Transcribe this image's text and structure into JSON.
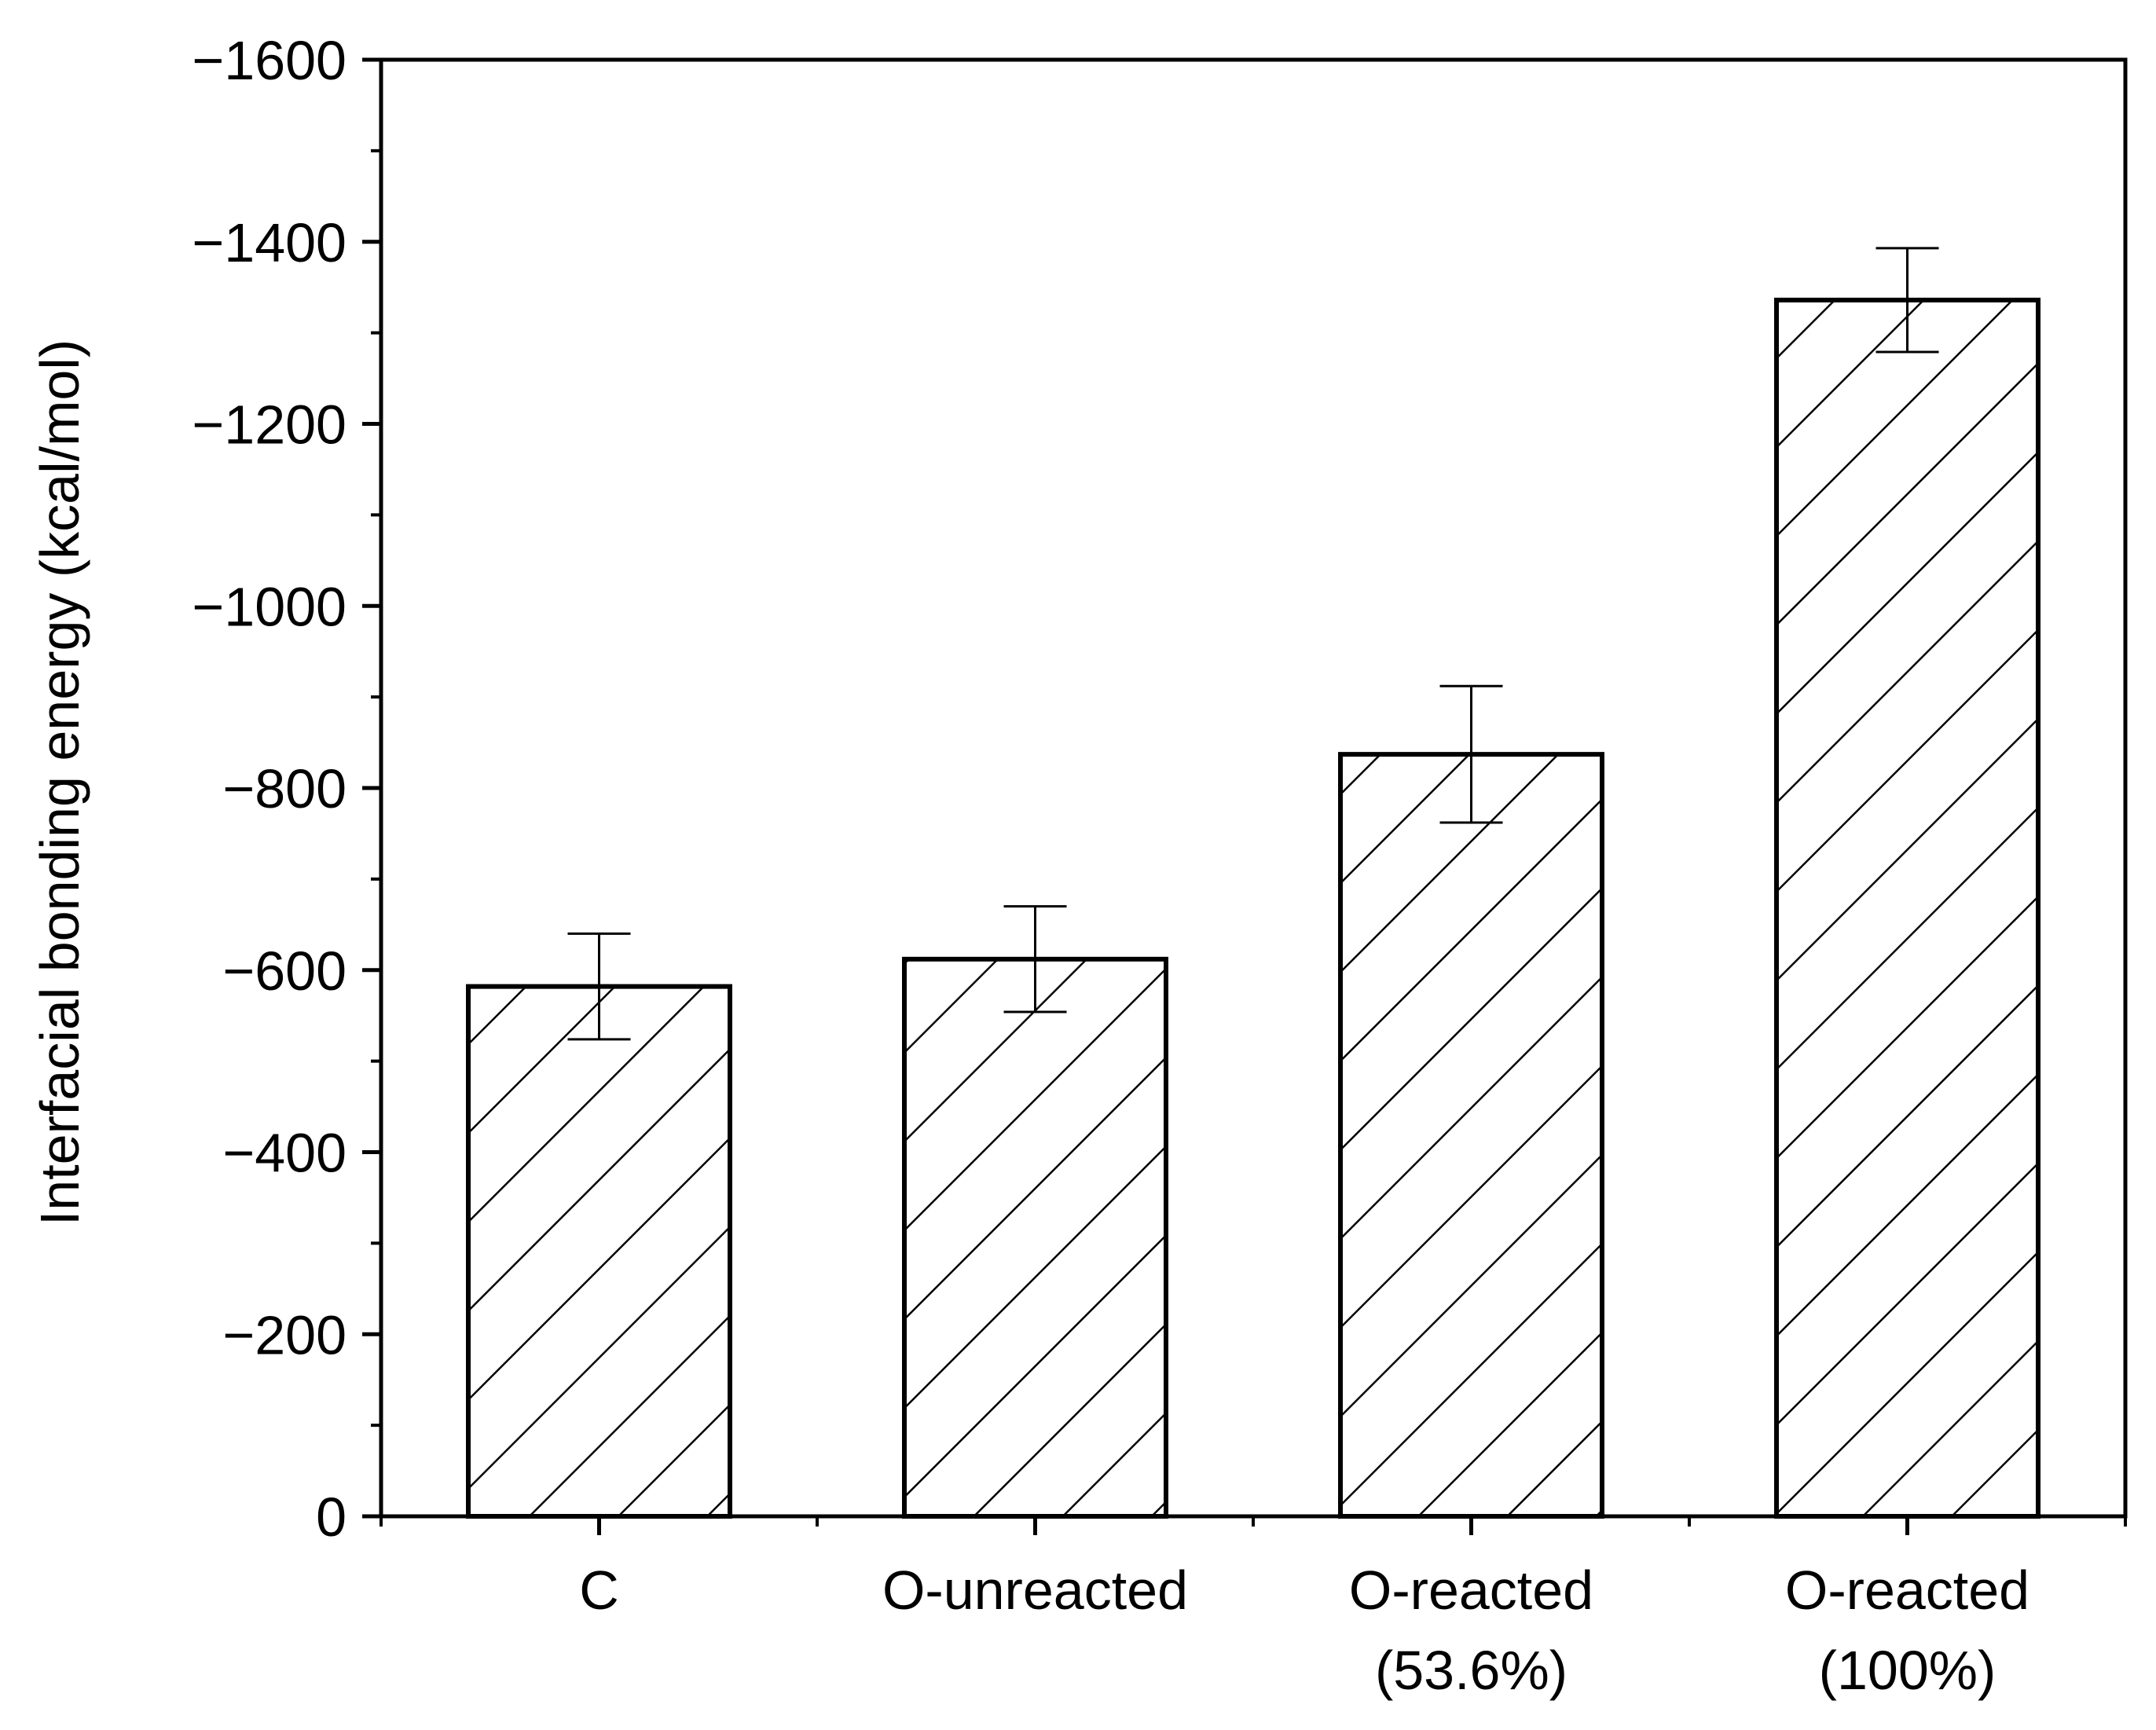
{
  "chart_data": {
    "type": "bar",
    "title": "",
    "xlabel": "",
    "ylabel": "Interfacial bonding energy (kcal/mol)",
    "categories": [
      [
        "C"
      ],
      [
        "O-unreacted"
      ],
      [
        "O-reacted",
        "(53.6%)"
      ],
      [
        "O-reacted",
        "(100%)"
      ]
    ],
    "values": [
      -582,
      -612,
      -837,
      -1336
    ],
    "errors": [
      58,
      58,
      75,
      57
    ],
    "ylim": [
      0,
      -1600
    ],
    "yticks": [
      0,
      -200,
      -400,
      -600,
      -800,
      -1000,
      -1200,
      -1400,
      -1600
    ],
    "ytick_labels": [
      "0",
      "−200",
      "−400",
      "−600",
      "−800",
      "−1000",
      "−1200",
      "−1400",
      "−1600"
    ],
    "bar_pattern": "diagonal-hatch",
    "bar_color": "#000000",
    "grid": false,
    "legend": "none"
  }
}
